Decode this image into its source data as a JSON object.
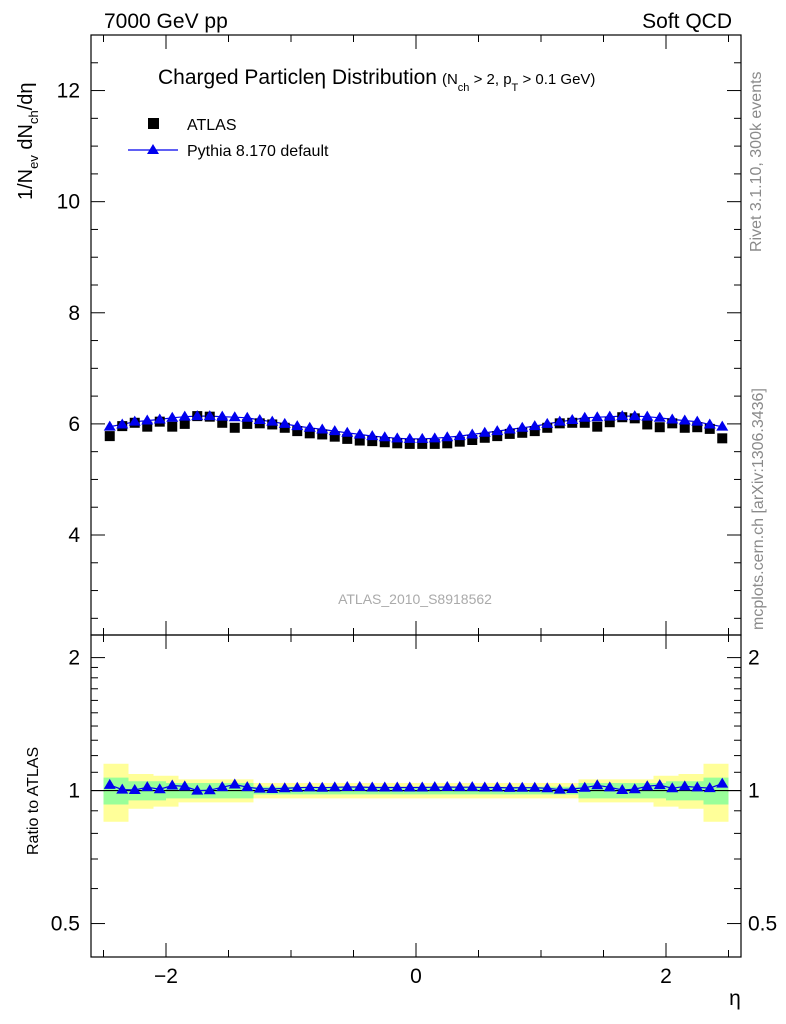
{
  "header": {
    "left": "7000 GeV pp",
    "right": "Soft QCD"
  },
  "title": {
    "main": "Charged Particleη Distribution",
    "cut_prefix": "(N",
    "cut_ch": "ch",
    "cut_mid": " > 2, p",
    "cut_t": "T",
    "cut_suffix": " > 0.1 GeV)"
  },
  "legend": {
    "atlas": "ATLAS",
    "pythia": "Pythia 8.170 default"
  },
  "watermark": "ATLAS_2010_S8918562",
  "side_labels": {
    "rivet": "Rivet 3.1.10,  300k events",
    "mcplots": "mcplots.cern.ch [arXiv:1306.3436]"
  },
  "ylabel_main": {
    "p1": "1/N",
    "s1": "ev",
    "p2": " dN",
    "s2": "ch",
    "p3": "/dη"
  },
  "ylabel_ratio": "Ratio to ATLAS",
  "xlabel": "η",
  "colors": {
    "data": "#000000",
    "mc": "#0000ee",
    "band_inner": "#99ff99",
    "band_outer": "#ffff99"
  },
  "chart_data": {
    "type": "scatter",
    "x": [
      -2.45,
      -2.35,
      -2.25,
      -2.15,
      -2.05,
      -1.95,
      -1.85,
      -1.75,
      -1.65,
      -1.55,
      -1.45,
      -1.35,
      -1.25,
      -1.15,
      -1.05,
      -0.95,
      -0.85,
      -0.75,
      -0.65,
      -0.55,
      -0.45,
      -0.35,
      -0.25,
      -0.15,
      -0.05,
      0.05,
      0.15,
      0.25,
      0.35,
      0.45,
      0.55,
      0.65,
      0.75,
      0.85,
      0.95,
      1.05,
      1.15,
      1.25,
      1.35,
      1.45,
      1.55,
      1.65,
      1.75,
      1.85,
      1.95,
      2.05,
      2.15,
      2.25,
      2.35,
      2.45
    ],
    "series": [
      {
        "name": "ATLAS",
        "marker": "square",
        "values": [
          5.78,
          5.96,
          6.02,
          5.95,
          6.04,
          5.95,
          6.0,
          6.14,
          6.13,
          6.02,
          5.93,
          6.0,
          6.01,
          5.99,
          5.93,
          5.87,
          5.83,
          5.81,
          5.77,
          5.73,
          5.7,
          5.69,
          5.67,
          5.65,
          5.64,
          5.64,
          5.64,
          5.65,
          5.68,
          5.71,
          5.75,
          5.78,
          5.82,
          5.84,
          5.87,
          5.93,
          6.01,
          6.02,
          6.02,
          5.95,
          6.03,
          6.12,
          6.1,
          5.99,
          5.94,
          6.01,
          5.93,
          5.94,
          5.91,
          5.74
        ]
      },
      {
        "name": "Pythia 8.170 default",
        "marker": "triangle",
        "values": [
          5.95,
          5.99,
          6.04,
          6.06,
          6.08,
          6.11,
          6.13,
          6.14,
          6.14,
          6.13,
          6.12,
          6.11,
          6.07,
          6.04,
          6.0,
          5.96,
          5.93,
          5.9,
          5.87,
          5.84,
          5.81,
          5.78,
          5.76,
          5.74,
          5.73,
          5.73,
          5.74,
          5.76,
          5.78,
          5.81,
          5.84,
          5.87,
          5.9,
          5.93,
          5.96,
          6.0,
          6.04,
          6.07,
          6.11,
          6.12,
          6.13,
          6.14,
          6.14,
          6.13,
          6.11,
          6.08,
          6.06,
          6.04,
          5.99,
          5.95
        ]
      }
    ],
    "ratio": {
      "ylabel": "Ratio to ATLAS",
      "values": [
        1.03,
        1.005,
        1.003,
        1.018,
        1.007,
        1.027,
        1.022,
        1.0,
        1.002,
        1.018,
        1.032,
        1.018,
        1.01,
        1.008,
        1.012,
        1.015,
        1.017,
        1.015,
        1.017,
        1.019,
        1.019,
        1.016,
        1.016,
        1.016,
        1.016,
        1.016,
        1.018,
        1.019,
        1.018,
        1.018,
        1.016,
        1.016,
        1.014,
        1.015,
        1.015,
        1.012,
        1.005,
        1.008,
        1.015,
        1.028,
        1.017,
        1.003,
        1.007,
        1.023,
        1.029,
        1.012,
        1.022,
        1.017,
        1.013,
        1.037
      ],
      "band_inner": [
        0.07,
        0.07,
        0.05,
        0.05,
        0.05,
        0.04,
        0.04,
        0.04,
        0.04,
        0.04,
        0.04,
        0.04,
        0.02,
        0.02,
        0.02,
        0.02,
        0.02,
        0.02,
        0.02,
        0.02,
        0.02,
        0.02,
        0.02,
        0.02,
        0.02,
        0.02,
        0.02,
        0.02,
        0.02,
        0.02,
        0.02,
        0.02,
        0.02,
        0.02,
        0.02,
        0.02,
        0.02,
        0.02,
        0.04,
        0.04,
        0.04,
        0.04,
        0.04,
        0.04,
        0.04,
        0.05,
        0.05,
        0.05,
        0.07,
        0.07
      ],
      "band_outer": [
        0.15,
        0.15,
        0.09,
        0.09,
        0.08,
        0.08,
        0.06,
        0.06,
        0.06,
        0.06,
        0.06,
        0.06,
        0.04,
        0.04,
        0.04,
        0.04,
        0.04,
        0.04,
        0.04,
        0.04,
        0.04,
        0.04,
        0.04,
        0.04,
        0.04,
        0.04,
        0.04,
        0.04,
        0.04,
        0.04,
        0.04,
        0.04,
        0.04,
        0.04,
        0.04,
        0.04,
        0.04,
        0.04,
        0.06,
        0.06,
        0.06,
        0.06,
        0.06,
        0.06,
        0.08,
        0.08,
        0.09,
        0.09,
        0.15,
        0.15
      ]
    },
    "xlim": [
      -2.6,
      2.6
    ],
    "ylim": [
      2.2,
      13.0
    ],
    "ratio_ylim": [
      0.42,
      2.25
    ],
    "ratio_scale": "log",
    "xticks": [
      -2,
      0,
      2
    ],
    "xtick_labels": [
      "−2",
      "0",
      "2"
    ],
    "yticks": [
      4,
      6,
      8,
      10,
      12
    ],
    "ytick_labels": [
      "4",
      "6",
      "8",
      "10",
      "12"
    ],
    "ratio_yticks": [
      0.5,
      1,
      2
    ],
    "ratio_ytick_labels": [
      "0.5",
      "1",
      "2"
    ],
    "legend_position": "top-left",
    "grid": false
  }
}
